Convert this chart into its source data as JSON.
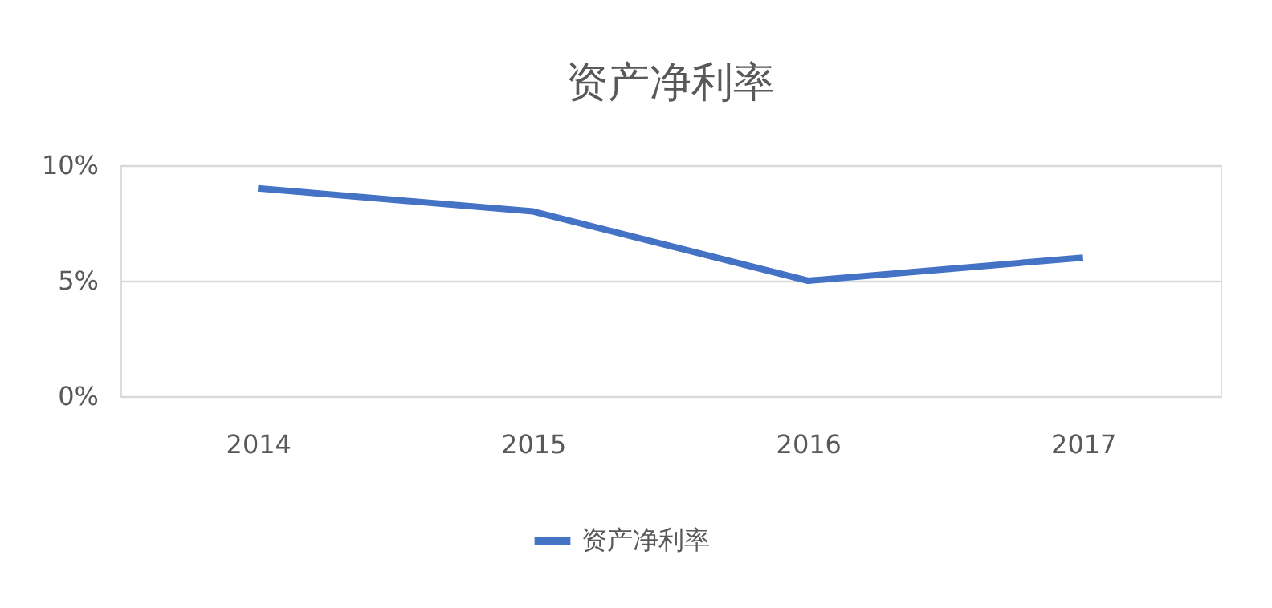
{
  "chart_data": {
    "type": "line",
    "title": "资产净利率",
    "categories": [
      "2014",
      "2015",
      "2016",
      "2017"
    ],
    "series": [
      {
        "name": "资产净利率",
        "color": "#4472c4",
        "values": [
          9,
          8,
          5,
          6
        ]
      }
    ],
    "ylim": [
      0,
      10
    ],
    "yticks": [
      {
        "value": 0,
        "label": "0%"
      },
      {
        "value": 5,
        "label": "5%"
      },
      {
        "value": 10,
        "label": "10%"
      }
    ],
    "grid": "y",
    "legend": "bottom",
    "marker": "none",
    "line_style": "solid"
  }
}
